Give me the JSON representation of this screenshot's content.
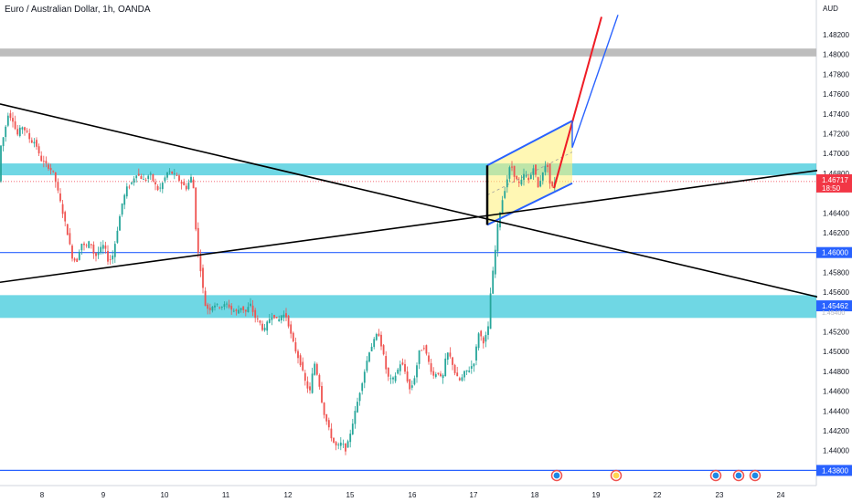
{
  "header": {
    "title": "Euro / Australian Dollar, 1h, OANDA"
  },
  "currency": "AUD",
  "colors": {
    "up": "#26a69a",
    "down": "#ef5350",
    "zone": "#22c1d6",
    "level": "#2962ff",
    "trend": "#000000",
    "channel": "#2962ff",
    "channel_fill": "#fff176",
    "red_arrow": "#ef1c25",
    "blue_arrow": "#2962ff",
    "current": "#f23645",
    "gray_band": "#bdbdbd"
  },
  "chart_data": {
    "type": "candlestick",
    "symbol": "Euro / Australian Dollar",
    "timeframe": "1h",
    "source": "OANDA",
    "y_ticks": [
      "1.48200",
      "1.48000",
      "1.47800",
      "1.47600",
      "1.47400",
      "1.47200",
      "1.47000",
      "1.46800",
      "1.46400",
      "1.46200",
      "1.45800",
      "1.45600",
      "1.45200",
      "1.45000",
      "1.44800",
      "1.44600",
      "1.44400",
      "1.44200",
      "1.44000"
    ],
    "x_labels": [
      "8",
      "9",
      "10",
      "11",
      "12",
      "15",
      "16",
      "17",
      "18",
      "19",
      "22",
      "23",
      "24"
    ],
    "ylim": [
      1.438,
      1.484
    ],
    "price_labels": [
      {
        "text": "1.46717",
        "sub": "18:50",
        "kind": "current"
      },
      {
        "text": "1.46000",
        "kind": "level"
      },
      {
        "text": "1.45462",
        "kind": "level"
      },
      {
        "text": "1.45400",
        "kind": "faded"
      },
      {
        "text": "1.43800",
        "kind": "level"
      }
    ],
    "support_resistance_zones": [
      {
        "from": 1.4678,
        "to": 1.469
      },
      {
        "from": 1.4534,
        "to": 1.4557
      }
    ],
    "gray_band": {
      "from": 1.4798,
      "to": 1.4806
    },
    "horizontal_levels": [
      1.46,
      1.438
    ],
    "current_price": 1.46717,
    "channel_shown": true,
    "event_markers": 5,
    "price_path": [
      [
        0,
        1.47
      ],
      [
        6,
        1.472
      ],
      [
        10,
        1.474
      ],
      [
        15,
        1.4735
      ],
      [
        20,
        1.4718
      ],
      [
        25,
        1.4728
      ],
      [
        30,
        1.4722
      ],
      [
        35,
        1.4712
      ],
      [
        40,
        1.4712
      ],
      [
        45,
        1.4695
      ],
      [
        50,
        1.469
      ],
      [
        55,
        1.4686
      ],
      [
        60,
        1.468
      ],
      [
        65,
        1.466
      ],
      [
        70,
        1.464
      ],
      [
        75,
        1.462
      ],
      [
        80,
        1.4596
      ],
      [
        85,
        1.459
      ],
      [
        90,
        1.461
      ],
      [
        95,
        1.4605
      ],
      [
        100,
        1.4612
      ],
      [
        105,
        1.4595
      ],
      [
        110,
        1.4602
      ],
      [
        115,
        1.4608
      ],
      [
        120,
        1.459
      ],
      [
        125,
        1.4598
      ],
      [
        130,
        1.4625
      ],
      [
        135,
        1.465
      ],
      [
        140,
        1.4665
      ],
      [
        145,
        1.467
      ],
      [
        150,
        1.468
      ],
      [
        155,
        1.4676
      ],
      [
        160,
        1.4672
      ],
      [
        165,
        1.468
      ],
      [
        170,
        1.467
      ],
      [
        175,
        1.4662
      ],
      [
        180,
        1.4672
      ],
      [
        185,
        1.4682
      ],
      [
        190,
        1.468
      ],
      [
        195,
        1.4676
      ],
      [
        200,
        1.467
      ],
      [
        205,
        1.4665
      ],
      [
        210,
        1.4675
      ],
      [
        212,
        1.468
      ],
      [
        215,
        1.463
      ],
      [
        218,
        1.46
      ],
      [
        222,
        1.4575
      ],
      [
        225,
        1.4548
      ],
      [
        230,
        1.4542
      ],
      [
        235,
        1.4548
      ],
      [
        240,
        1.4546
      ],
      [
        245,
        1.4546
      ],
      [
        250,
        1.4548
      ],
      [
        255,
        1.4542
      ],
      [
        260,
        1.454
      ],
      [
        265,
        1.4545
      ],
      [
        270,
        1.454
      ],
      [
        275,
        1.4548
      ],
      [
        280,
        1.4535
      ],
      [
        285,
        1.453
      ],
      [
        290,
        1.452
      ],
      [
        295,
        1.4532
      ],
      [
        300,
        1.4538
      ],
      [
        305,
        1.453
      ],
      [
        310,
        1.4538
      ],
      [
        315,
        1.4535
      ],
      [
        320,
        1.4515
      ],
      [
        325,
        1.45
      ],
      [
        330,
        1.4488
      ],
      [
        335,
        1.447
      ],
      [
        340,
        1.4458
      ],
      [
        345,
        1.449
      ],
      [
        350,
        1.447
      ],
      [
        355,
        1.444
      ],
      [
        360,
        1.4425
      ],
      [
        365,
        1.441
      ],
      [
        370,
        1.4403
      ],
      [
        375,
        1.4408
      ],
      [
        380,
        1.44
      ],
      [
        385,
        1.442
      ],
      [
        390,
        1.444
      ],
      [
        395,
        1.446
      ],
      [
        400,
        1.448
      ],
      [
        405,
        1.45
      ],
      [
        410,
        1.451
      ],
      [
        415,
        1.452
      ],
      [
        420,
        1.45
      ],
      [
        425,
        1.4475
      ],
      [
        430,
        1.447
      ],
      [
        435,
        1.4478
      ],
      [
        440,
        1.449
      ],
      [
        445,
        1.4478
      ],
      [
        450,
        1.446
      ],
      [
        455,
        1.4475
      ],
      [
        460,
        1.45
      ],
      [
        465,
        1.4505
      ],
      [
        470,
        1.449
      ],
      [
        475,
        1.4475
      ],
      [
        480,
        1.448
      ],
      [
        485,
        1.447
      ],
      [
        490,
        1.45
      ],
      [
        495,
        1.4492
      ],
      [
        500,
        1.4475
      ],
      [
        505,
        1.447
      ],
      [
        510,
        1.448
      ],
      [
        515,
        1.4482
      ],
      [
        520,
        1.449
      ],
      [
        525,
        1.452
      ],
      [
        530,
        1.451
      ],
      [
        535,
        1.452
      ],
      [
        538,
        1.456
      ],
      [
        542,
        1.4592
      ],
      [
        546,
        1.463
      ],
      [
        550,
        1.465
      ],
      [
        555,
        1.467
      ],
      [
        560,
        1.469
      ],
      [
        565,
        1.4675
      ],
      [
        570,
        1.4668
      ],
      [
        575,
        1.468
      ],
      [
        580,
        1.4672
      ],
      [
        585,
        1.4688
      ],
      [
        590,
        1.4665
      ],
      [
        595,
        1.4682
      ],
      [
        600,
        1.469
      ],
      [
        604,
        1.4662
      ],
      [
        608,
        1.4672
      ]
    ],
    "lines": [
      {
        "name": "descending trend",
        "from": [
          0,
          1.475
        ],
        "to": [
          895,
          1.4555
        ]
      },
      {
        "name": "ascending trend",
        "from": [
          0,
          1.457
        ],
        "to": [
          895,
          1.4683
        ]
      },
      {
        "name": "spike",
        "from": [
          533,
          1.4688
        ],
        "to": [
          533,
          1.4628
        ]
      }
    ],
    "channel": {
      "upper": [
        [
          533,
          1.4688
        ],
        [
          626,
          1.4733
        ]
      ],
      "lower": [
        [
          533,
          1.4628
        ],
        [
          626,
          1.467
        ]
      ]
    },
    "projection_red": {
      "path": [
        [
          606,
          1.4665
        ],
        [
          658,
          1.4838
        ]
      ]
    },
    "projection_blue": {
      "path": [
        [
          626,
          1.4706
        ],
        [
          676,
          1.484
        ]
      ]
    }
  }
}
